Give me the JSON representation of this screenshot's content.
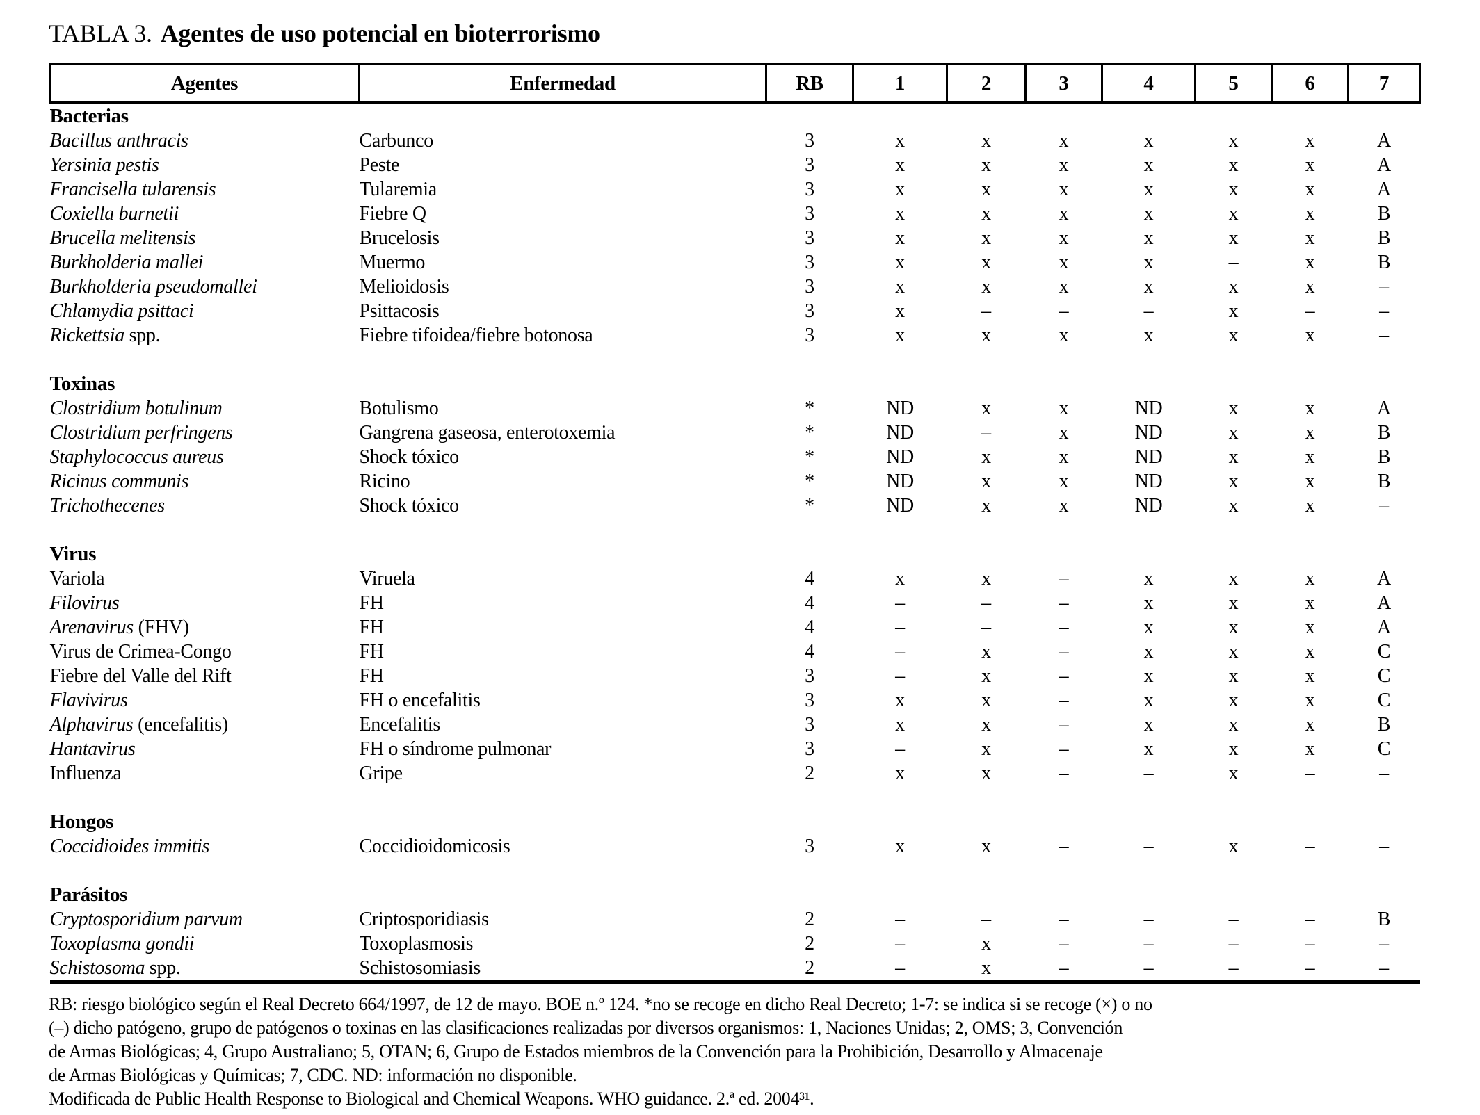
{
  "caption": {
    "label": "TABLA 3.",
    "title": "Agentes de uso potencial en bioterrorismo"
  },
  "table": {
    "headers": [
      "Agentes",
      "Enfermedad",
      "RB",
      "1",
      "2",
      "3",
      "4",
      "5",
      "6",
      "7"
    ],
    "sections": [
      {
        "name": "Bacterias",
        "rows": [
          {
            "agent_italic": "Bacillus anthracis",
            "agent_regular": "",
            "disease": "Carbunco",
            "rb": "3",
            "cols": [
              "x",
              "x",
              "x",
              "x",
              "x",
              "x",
              "A"
            ]
          },
          {
            "agent_italic": "Yersinia pestis",
            "agent_regular": "",
            "disease": "Peste",
            "rb": "3",
            "cols": [
              "x",
              "x",
              "x",
              "x",
              "x",
              "x",
              "A"
            ]
          },
          {
            "agent_italic": "Francisella tularensis",
            "agent_regular": "",
            "disease": "Tularemia",
            "rb": "3",
            "cols": [
              "x",
              "x",
              "x",
              "x",
              "x",
              "x",
              "A"
            ]
          },
          {
            "agent_italic": "Coxiella burnetii",
            "agent_regular": "",
            "disease": "Fiebre Q",
            "rb": "3",
            "cols": [
              "x",
              "x",
              "x",
              "x",
              "x",
              "x",
              "B"
            ]
          },
          {
            "agent_italic": "Brucella melitensis",
            "agent_regular": "",
            "disease": "Brucelosis",
            "rb": "3",
            "cols": [
              "x",
              "x",
              "x",
              "x",
              "x",
              "x",
              "B"
            ]
          },
          {
            "agent_italic": "Burkholderia mallei",
            "agent_regular": "",
            "disease": "Muermo",
            "rb": "3",
            "cols": [
              "x",
              "x",
              "x",
              "x",
              "–",
              "x",
              "B"
            ]
          },
          {
            "agent_italic": "Burkholderia pseudomallei",
            "agent_regular": "",
            "disease": "Melioidosis",
            "rb": "3",
            "cols": [
              "x",
              "x",
              "x",
              "x",
              "x",
              "x",
              "–"
            ]
          },
          {
            "agent_italic": "Chlamydia psittaci",
            "agent_regular": "",
            "disease": "Psittacosis",
            "rb": "3",
            "cols": [
              "x",
              "–",
              "–",
              "–",
              "x",
              "–",
              "–"
            ]
          },
          {
            "agent_italic": "Rickettsia",
            "agent_regular": " spp.",
            "disease": "Fiebre tifoidea/fiebre botonosa",
            "rb": "3",
            "cols": [
              "x",
              "x",
              "x",
              "x",
              "x",
              "x",
              "–"
            ]
          }
        ]
      },
      {
        "name": "Toxinas",
        "rows": [
          {
            "agent_italic": "Clostridium botulinum",
            "agent_regular": "",
            "disease": "Botulismo",
            "rb": "*",
            "cols": [
              "ND",
              "x",
              "x",
              "ND",
              "x",
              "x",
              "A"
            ]
          },
          {
            "agent_italic": "Clostridium perfringens",
            "agent_regular": "",
            "disease": "Gangrena gaseosa, enterotoxemia",
            "rb": "*",
            "cols": [
              "ND",
              "–",
              "x",
              "ND",
              "x",
              "x",
              "B"
            ]
          },
          {
            "agent_italic": "Staphylococcus aureus",
            "agent_regular": "",
            "disease": "Shock tóxico",
            "rb": "*",
            "cols": [
              "ND",
              "x",
              "x",
              "ND",
              "x",
              "x",
              "B"
            ]
          },
          {
            "agent_italic": "Ricinus communis",
            "agent_regular": "",
            "disease": "Ricino",
            "rb": "*",
            "cols": [
              "ND",
              "x",
              "x",
              "ND",
              "x",
              "x",
              "B"
            ]
          },
          {
            "agent_italic": "Trichothecenes",
            "agent_regular": "",
            "disease": "Shock tóxico",
            "rb": "*",
            "cols": [
              "ND",
              "x",
              "x",
              "ND",
              "x",
              "x",
              "–"
            ]
          }
        ]
      },
      {
        "name": "Virus",
        "rows": [
          {
            "agent_italic": "",
            "agent_regular": "Variola",
            "disease": "Viruela",
            "rb": "4",
            "cols": [
              "x",
              "x",
              "–",
              "x",
              "x",
              "x",
              "A"
            ]
          },
          {
            "agent_italic": "Filovirus",
            "agent_regular": "",
            "disease": "FH",
            "rb": "4",
            "cols": [
              "–",
              "–",
              "–",
              "x",
              "x",
              "x",
              "A"
            ]
          },
          {
            "agent_italic": "Arenavirus",
            "agent_regular": " (FHV)",
            "disease": "FH",
            "rb": "4",
            "cols": [
              "–",
              "–",
              "–",
              "x",
              "x",
              "x",
              "A"
            ]
          },
          {
            "agent_italic": "",
            "agent_regular": "Virus de Crimea-Congo",
            "disease": "FH",
            "rb": "4",
            "cols": [
              "–",
              "x",
              "–",
              "x",
              "x",
              "x",
              "C"
            ]
          },
          {
            "agent_italic": "",
            "agent_regular": "Fiebre del Valle del Rift",
            "disease": "FH",
            "rb": "3",
            "cols": [
              "–",
              "x",
              "–",
              "x",
              "x",
              "x",
              "C"
            ]
          },
          {
            "agent_italic": "Flavivirus",
            "agent_regular": "",
            "disease": "FH o encefalitis",
            "rb": "3",
            "cols": [
              "x",
              "x",
              "–",
              "x",
              "x",
              "x",
              "C"
            ]
          },
          {
            "agent_italic": "Alphavirus",
            "agent_regular": " (encefalitis)",
            "disease": "Encefalitis",
            "rb": "3",
            "cols": [
              "x",
              "x",
              "–",
              "x",
              "x",
              "x",
              "B"
            ]
          },
          {
            "agent_italic": "Hantavirus",
            "agent_regular": "",
            "disease": "FH o síndrome pulmonar",
            "rb": "3",
            "cols": [
              "–",
              "x",
              "–",
              "x",
              "x",
              "x",
              "C"
            ]
          },
          {
            "agent_italic": "",
            "agent_regular": "Influenza",
            "disease": "Gripe",
            "rb": "2",
            "cols": [
              "x",
              "x",
              "–",
              "–",
              "x",
              "–",
              "–"
            ]
          }
        ]
      },
      {
        "name": "Hongos",
        "rows": [
          {
            "agent_italic": "Coccidioides immitis",
            "agent_regular": "",
            "disease": "Coccidioidomicosis",
            "rb": "3",
            "cols": [
              "x",
              "x",
              "–",
              "–",
              "x",
              "–",
              "–"
            ]
          }
        ]
      },
      {
        "name": "Parásitos",
        "rows": [
          {
            "agent_italic": "Cryptosporidium parvum",
            "agent_regular": "",
            "disease": "Criptosporidiasis",
            "rb": "2",
            "cols": [
              "–",
              "–",
              "–",
              "–",
              "–",
              "–",
              "B"
            ]
          },
          {
            "agent_italic": "Toxoplasma gondii",
            "agent_regular": "",
            "disease": "Toxoplasmosis",
            "rb": "2",
            "cols": [
              "–",
              "x",
              "–",
              "–",
              "–",
              "–",
              "–"
            ]
          },
          {
            "agent_italic": "Schistosoma",
            "agent_regular": " spp.",
            "disease": "Schistosomiasis",
            "rb": "2",
            "cols": [
              "–",
              "x",
              "–",
              "–",
              "–",
              "–",
              "–"
            ]
          }
        ]
      }
    ]
  },
  "footnotes": [
    "RB: riesgo biológico según el Real Decreto 664/1997, de 12 de mayo. BOE n.º 124. *no se recoge en dicho Real Decreto; 1-7: se indica si se recoge (×) o no",
    "(–) dicho patógeno, grupo de patógenos o toxinas en las clasificaciones realizadas por diversos organismos: 1, Naciones Unidas; 2, OMS; 3, Convención",
    "de Armas Biológicas; 4, Grupo Australiano; 5, OTAN; 6, Grupo de Estados miembros de la Convención para la Prohibición, Desarrollo y Almacenaje",
    "de Armas Biológicas y Químicas; 7, CDC. ND: información no disponible.",
    "Modificada de Public Health Response to Biological and Chemical Weapons. WHO guidance. 2.ª ed. 2004³¹."
  ]
}
